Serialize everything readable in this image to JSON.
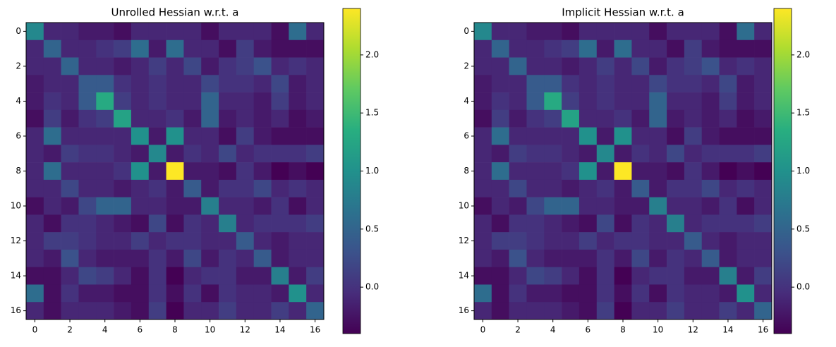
{
  "chart_data": [
    {
      "type": "heatmap",
      "title": "Unrolled Hessian w.r.t. a",
      "colormap": "viridis",
      "xlim": [
        -0.5,
        16.5
      ],
      "ylim": [
        16.5,
        -0.5
      ],
      "xticks": [
        0,
        2,
        4,
        6,
        8,
        10,
        12,
        14,
        16
      ],
      "yticks": [
        0,
        2,
        4,
        6,
        8,
        10,
        12,
        14,
        16
      ],
      "clim": [
        -0.4,
        2.4
      ],
      "cticks": [
        {
          "value": 0,
          "label": "0.0"
        },
        {
          "value": 0.5,
          "label": "0.5"
        },
        {
          "value": 1,
          "label": "1.0"
        },
        {
          "value": 1.5,
          "label": "1.5"
        },
        {
          "value": 2,
          "label": "2.0"
        }
      ],
      "matrix": [
        [
          0.9,
          -0.1,
          -0.1,
          -0.2,
          -0.2,
          -0.3,
          -0.1,
          -0.1,
          -0.1,
          -0.1,
          -0.3,
          -0.1,
          -0.1,
          -0.1,
          -0.3,
          0.6,
          -0.1
        ],
        [
          -0.1,
          0.5,
          -0.1,
          -0.1,
          0.0,
          0.1,
          0.6,
          -0.2,
          0.6,
          -0.1,
          -0.1,
          -0.3,
          0.1,
          -0.2,
          -0.3,
          -0.3,
          -0.3
        ],
        [
          -0.1,
          -0.1,
          0.5,
          -0.1,
          -0.1,
          -0.2,
          -0.1,
          0.1,
          -0.1,
          0.2,
          -0.2,
          0.0,
          0.1,
          0.3,
          -0.1,
          0.0,
          -0.1
        ],
        [
          -0.2,
          -0.1,
          -0.1,
          0.4,
          0.4,
          0.0,
          -0.1,
          0.0,
          -0.1,
          -0.1,
          0.2,
          0.0,
          0.0,
          -0.1,
          0.2,
          -0.2,
          -0.1
        ],
        [
          -0.2,
          0.0,
          -0.1,
          0.4,
          1.3,
          0.1,
          -0.1,
          0.0,
          -0.1,
          -0.1,
          0.5,
          -0.1,
          -0.1,
          -0.2,
          0.1,
          -0.2,
          -0.1
        ],
        [
          -0.3,
          0.1,
          -0.2,
          0.0,
          0.1,
          1.2,
          -0.1,
          -0.1,
          0.0,
          -0.2,
          0.5,
          -0.2,
          -0.1,
          -0.2,
          -0.1,
          -0.3,
          -0.2
        ],
        [
          -0.1,
          0.6,
          -0.1,
          -0.1,
          -0.1,
          -0.1,
          1.0,
          -0.2,
          1.0,
          -0.1,
          -0.1,
          -0.3,
          0.1,
          -0.2,
          -0.3,
          -0.3,
          -0.3
        ],
        [
          -0.1,
          -0.2,
          0.1,
          0.0,
          0.0,
          -0.1,
          -0.2,
          0.9,
          -0.2,
          0.0,
          -0.1,
          0.2,
          -0.1,
          0.0,
          0.0,
          0.0,
          0.1
        ],
        [
          -0.1,
          0.6,
          -0.1,
          -0.1,
          -0.1,
          0.0,
          1.0,
          -0.2,
          2.4,
          -0.2,
          -0.2,
          -0.3,
          0.0,
          -0.2,
          -0.4,
          -0.3,
          -0.4
        ],
        [
          -0.1,
          -0.1,
          0.2,
          -0.1,
          -0.1,
          -0.2,
          -0.1,
          0.0,
          -0.2,
          0.4,
          -0.2,
          0.0,
          0.0,
          0.2,
          -0.1,
          0.0,
          -0.1
        ],
        [
          -0.3,
          -0.1,
          -0.2,
          0.2,
          0.5,
          0.5,
          -0.1,
          -0.1,
          -0.2,
          -0.2,
          0.8,
          -0.1,
          -0.1,
          -0.2,
          0.0,
          -0.3,
          -0.1
        ],
        [
          -0.1,
          -0.3,
          0.0,
          0.0,
          -0.1,
          -0.2,
          -0.3,
          0.2,
          -0.3,
          0.0,
          -0.1,
          0.8,
          -0.1,
          0.0,
          0.0,
          0.0,
          0.1
        ],
        [
          -0.1,
          0.1,
          0.1,
          0.0,
          -0.1,
          -0.1,
          0.1,
          -0.1,
          0.0,
          0.0,
          -0.1,
          -0.1,
          0.4,
          -0.1,
          -0.2,
          -0.1,
          -0.1
        ],
        [
          -0.1,
          -0.2,
          0.3,
          -0.1,
          -0.2,
          -0.2,
          -0.2,
          0.0,
          -0.2,
          0.2,
          -0.2,
          0.0,
          -0.1,
          0.4,
          -0.2,
          -0.1,
          -0.1
        ],
        [
          -0.3,
          -0.3,
          -0.1,
          0.2,
          0.1,
          -0.1,
          -0.3,
          0.0,
          -0.4,
          -0.1,
          0.0,
          0.0,
          -0.2,
          -0.2,
          0.8,
          -0.2,
          0.1
        ],
        [
          0.6,
          -0.3,
          0.0,
          -0.2,
          -0.2,
          -0.3,
          -0.3,
          0.0,
          -0.3,
          0.0,
          -0.3,
          0.0,
          -0.1,
          -0.1,
          -0.2,
          1.0,
          -0.1
        ],
        [
          -0.1,
          -0.3,
          -0.1,
          -0.1,
          -0.1,
          -0.2,
          -0.3,
          0.1,
          -0.4,
          -0.1,
          -0.1,
          0.1,
          -0.1,
          -0.1,
          0.1,
          -0.1,
          0.5
        ]
      ]
    },
    {
      "type": "heatmap",
      "title": "Implicit Hessian w.r.t. a",
      "colormap": "viridis",
      "xlim": [
        -0.5,
        16.5
      ],
      "ylim": [
        16.5,
        -0.5
      ],
      "xticks": [
        0,
        2,
        4,
        6,
        8,
        10,
        12,
        14,
        16
      ],
      "yticks": [
        0,
        2,
        4,
        6,
        8,
        10,
        12,
        14,
        16
      ],
      "clim": [
        -0.4,
        2.4
      ],
      "cticks": [
        {
          "value": 0,
          "label": "0.0"
        },
        {
          "value": 0.5,
          "label": "0.5"
        },
        {
          "value": 1,
          "label": "1.0"
        },
        {
          "value": 1.5,
          "label": "1.5"
        },
        {
          "value": 2,
          "label": "2.0"
        }
      ],
      "matrix": [
        [
          0.9,
          -0.1,
          -0.1,
          -0.2,
          -0.2,
          -0.3,
          -0.1,
          -0.1,
          -0.1,
          -0.1,
          -0.3,
          -0.1,
          -0.1,
          -0.1,
          -0.3,
          0.6,
          -0.1
        ],
        [
          -0.1,
          0.5,
          -0.1,
          -0.1,
          0.0,
          0.1,
          0.6,
          -0.2,
          0.6,
          -0.1,
          -0.1,
          -0.3,
          0.1,
          -0.2,
          -0.3,
          -0.3,
          -0.3
        ],
        [
          -0.1,
          -0.1,
          0.5,
          -0.1,
          -0.1,
          -0.2,
          -0.1,
          0.1,
          -0.1,
          0.2,
          -0.2,
          0.0,
          0.1,
          0.3,
          -0.1,
          0.0,
          -0.1
        ],
        [
          -0.2,
          -0.1,
          -0.1,
          0.4,
          0.4,
          0.0,
          -0.1,
          0.0,
          -0.1,
          -0.1,
          0.2,
          0.0,
          0.0,
          -0.1,
          0.2,
          -0.2,
          -0.1
        ],
        [
          -0.2,
          0.0,
          -0.1,
          0.4,
          1.3,
          0.1,
          -0.1,
          0.0,
          -0.1,
          -0.1,
          0.5,
          -0.1,
          -0.1,
          -0.2,
          0.1,
          -0.2,
          -0.1
        ],
        [
          -0.3,
          0.1,
          -0.2,
          0.0,
          0.1,
          1.2,
          -0.1,
          -0.1,
          0.0,
          -0.2,
          0.5,
          -0.2,
          -0.1,
          -0.2,
          -0.1,
          -0.3,
          -0.2
        ],
        [
          -0.1,
          0.6,
          -0.1,
          -0.1,
          -0.1,
          -0.1,
          1.0,
          -0.2,
          1.0,
          -0.1,
          -0.1,
          -0.3,
          0.1,
          -0.2,
          -0.3,
          -0.3,
          -0.3
        ],
        [
          -0.1,
          -0.2,
          0.1,
          0.0,
          0.0,
          -0.1,
          -0.2,
          0.9,
          -0.2,
          0.0,
          -0.1,
          0.2,
          -0.1,
          0.0,
          0.0,
          0.0,
          0.1
        ],
        [
          -0.1,
          0.6,
          -0.1,
          -0.1,
          -0.1,
          0.0,
          1.0,
          -0.2,
          2.4,
          -0.2,
          -0.2,
          -0.3,
          0.0,
          -0.2,
          -0.4,
          -0.3,
          -0.4
        ],
        [
          -0.1,
          -0.1,
          0.2,
          -0.1,
          -0.1,
          -0.2,
          -0.1,
          0.0,
          -0.2,
          0.4,
          -0.2,
          0.0,
          0.0,
          0.2,
          -0.1,
          0.0,
          -0.1
        ],
        [
          -0.3,
          -0.1,
          -0.2,
          0.2,
          0.5,
          0.5,
          -0.1,
          -0.1,
          -0.2,
          -0.2,
          0.8,
          -0.1,
          -0.1,
          -0.2,
          0.0,
          -0.3,
          -0.1
        ],
        [
          -0.1,
          -0.3,
          0.0,
          0.0,
          -0.1,
          -0.2,
          -0.3,
          0.2,
          -0.3,
          0.0,
          -0.1,
          0.8,
          -0.1,
          0.0,
          0.0,
          0.0,
          0.1
        ],
        [
          -0.1,
          0.1,
          0.1,
          0.0,
          -0.1,
          -0.1,
          0.1,
          -0.1,
          0.0,
          0.0,
          -0.1,
          -0.1,
          0.4,
          -0.1,
          -0.2,
          -0.1,
          -0.1
        ],
        [
          -0.1,
          -0.2,
          0.3,
          -0.1,
          -0.2,
          -0.2,
          -0.2,
          0.0,
          -0.2,
          0.2,
          -0.2,
          0.0,
          -0.1,
          0.4,
          -0.2,
          -0.1,
          -0.1
        ],
        [
          -0.3,
          -0.3,
          -0.1,
          0.2,
          0.1,
          -0.1,
          -0.3,
          0.0,
          -0.4,
          -0.1,
          0.0,
          0.0,
          -0.2,
          -0.2,
          0.8,
          -0.2,
          0.1
        ],
        [
          0.6,
          -0.3,
          0.0,
          -0.2,
          -0.2,
          -0.3,
          -0.3,
          0.0,
          -0.3,
          0.0,
          -0.3,
          0.0,
          -0.1,
          -0.1,
          -0.2,
          1.0,
          -0.1
        ],
        [
          -0.1,
          -0.3,
          -0.1,
          -0.1,
          -0.1,
          -0.2,
          -0.3,
          0.1,
          -0.4,
          -0.1,
          -0.1,
          0.1,
          -0.1,
          -0.1,
          0.1,
          -0.1,
          0.5
        ]
      ]
    }
  ]
}
